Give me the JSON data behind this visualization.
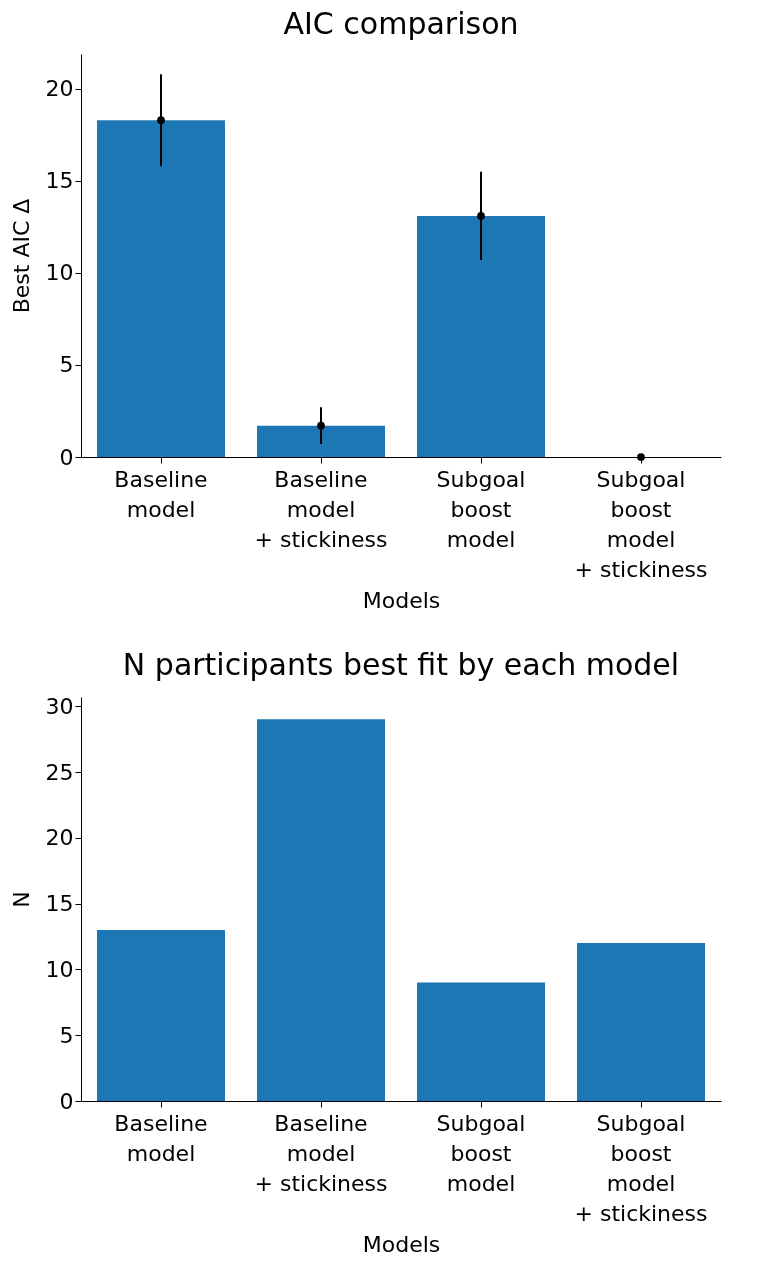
{
  "chart_data": [
    {
      "type": "bar",
      "title": "AIC comparison",
      "xlabel": "Models",
      "ylabel": "Best AIC Δ",
      "categories": [
        "Baseline\nmodel",
        "Baseline\nmodel\n+ stickiness",
        "Subgoal\nboost\nmodel",
        "Subgoal\nboost\nmodel\n+ stickiness"
      ],
      "series": [
        {
          "color": "#1c77b4",
          "values": [
            18.3,
            1.7,
            13.1,
            0
          ]
        },
        {
          "type": "scatter",
          "color": "#000000",
          "marker": "circle",
          "values": [
            18.3,
            1.7,
            13.1,
            0
          ],
          "errors": [
            2.5,
            1.0,
            2.4,
            0
          ]
        }
      ],
      "ylim": [
        0,
        21.9
      ],
      "yticks": [
        0,
        5,
        10,
        15,
        20
      ],
      "grid": false
    },
    {
      "type": "bar",
      "title": "N participants best fit by each model",
      "xlabel": "Models",
      "ylabel": "N",
      "categories": [
        "Baseline\nmodel",
        "Baseline\nmodel\n+ stickiness",
        "Subgoal\nboost\nmodel",
        "Subgoal\nboost\nmodel\n+ stickiness"
      ],
      "series": [
        {
          "color": "#1c77b4",
          "values": [
            13,
            29,
            9,
            12
          ]
        }
      ],
      "ylim": [
        0,
        30.7
      ],
      "yticks": [
        0,
        5,
        10,
        15,
        20,
        25,
        30
      ],
      "grid": false
    }
  ]
}
